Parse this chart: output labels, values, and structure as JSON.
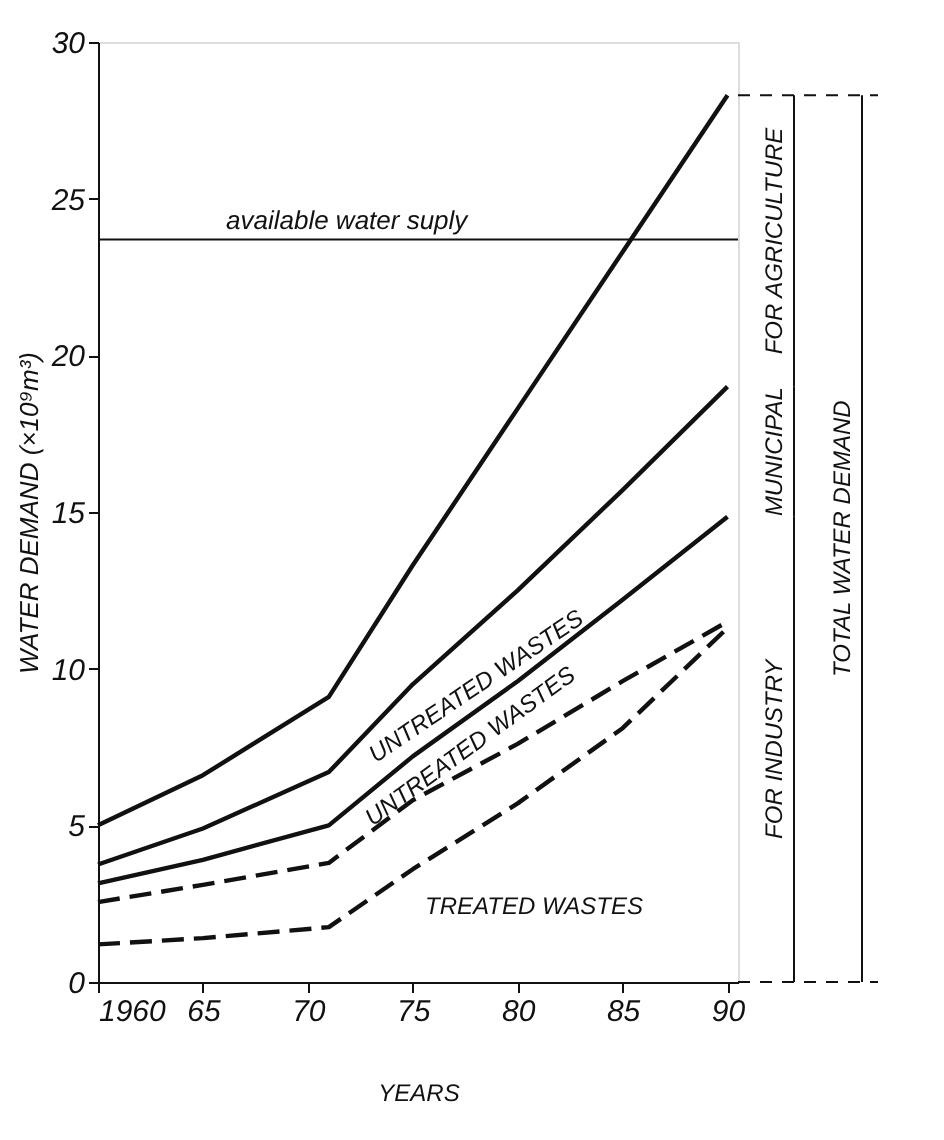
{
  "chart_data": {
    "type": "line",
    "xlabel": "YEARS",
    "ylabel": "WATER DEMAND (×10⁹m³)",
    "x": [
      1960,
      1965,
      1971,
      1975,
      1980,
      1985,
      1990
    ],
    "series": [
      {
        "color": "#111111",
        "line_style": "solid",
        "values": [
          5.0,
          6.6,
          9.1,
          13.3,
          18.3,
          23.3,
          28.3
        ]
      },
      {
        "color": "#111111",
        "line_style": "solid",
        "values": [
          3.75,
          4.9,
          6.7,
          9.5,
          12.5,
          15.7,
          19.0
        ]
      },
      {
        "color": "#111111",
        "line_style": "solid",
        "values": [
          3.15,
          3.9,
          5.0,
          7.2,
          9.6,
          12.2,
          14.85
        ]
      },
      {
        "color": "#111111",
        "line_style": "dashed",
        "values": [
          2.55,
          3.1,
          3.8,
          5.8,
          7.6,
          9.6,
          11.5
        ]
      },
      {
        "color": "#111111",
        "line_style": "dashed",
        "values": [
          1.2,
          1.4,
          1.75,
          3.6,
          5.7,
          8.1,
          11.3
        ]
      }
    ],
    "xlim": [
      1960,
      1990.5
    ],
    "xticks": [
      1960,
      {
        "value": 1965,
        "label": "65"
      },
      {
        "value": 1970,
        "label": "70"
      },
      {
        "value": 1975,
        "label": "75"
      },
      {
        "value": 1980,
        "label": "80"
      },
      {
        "value": 1985,
        "label": "85"
      },
      {
        "value": 1990,
        "label": "90"
      }
    ],
    "ylim": [
      0,
      30
    ],
    "yticks": [
      0,
      5,
      10,
      15,
      20,
      25,
      30
    ],
    "ref_lines": [
      {
        "axis": "y",
        "value": 23.7,
        "label": "available water suply",
        "color": "#111111"
      }
    ],
    "annotations": [
      "UNTREATED WASTES",
      "UNTREATED WASTES",
      "TREATED WASTES",
      "FOR AGRICULTURE",
      "MUNICIPAL",
      "FOR INDUSTRY",
      "TOTAL WATER DEMAND"
    ],
    "grid": false,
    "marker": "none"
  }
}
